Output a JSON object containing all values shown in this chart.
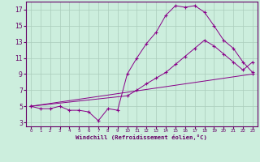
{
  "xlabel": "Windchill (Refroidissement éolien,°C)",
  "background_color": "#cceedd",
  "grid_color": "#aaccbb",
  "line_color": "#880088",
  "xmin": -0.5,
  "xmax": 23.5,
  "ymin": 2.5,
  "ymax": 18.0,
  "xticks": [
    0,
    1,
    2,
    3,
    4,
    5,
    6,
    7,
    8,
    9,
    10,
    11,
    12,
    13,
    14,
    15,
    16,
    17,
    18,
    19,
    20,
    21,
    22,
    23
  ],
  "yticks": [
    3,
    5,
    7,
    9,
    11,
    13,
    15,
    17
  ],
  "line1_x": [
    0,
    1,
    2,
    3,
    4,
    5,
    6,
    7,
    8,
    9,
    10,
    11,
    12,
    13,
    14,
    15,
    16,
    17,
    18,
    19,
    20,
    21,
    22,
    23
  ],
  "line1_y": [
    5,
    4.7,
    4.7,
    5.0,
    4.5,
    4.5,
    4.3,
    3.2,
    4.7,
    4.5,
    9.0,
    11.0,
    12.8,
    14.2,
    16.3,
    17.5,
    17.3,
    17.5,
    16.7,
    15.0,
    13.2,
    12.2,
    10.5,
    9.2
  ],
  "line2_x": [
    0,
    23
  ],
  "line2_y": [
    5,
    9.0
  ],
  "line3_x": [
    0,
    10,
    11,
    12,
    13,
    14,
    15,
    16,
    17,
    18,
    19,
    20,
    21,
    22,
    23
  ],
  "line3_y": [
    5,
    6.3,
    7.0,
    7.8,
    8.5,
    9.2,
    10.2,
    11.2,
    12.2,
    13.2,
    12.5,
    11.5,
    10.5,
    9.5,
    10.5
  ]
}
